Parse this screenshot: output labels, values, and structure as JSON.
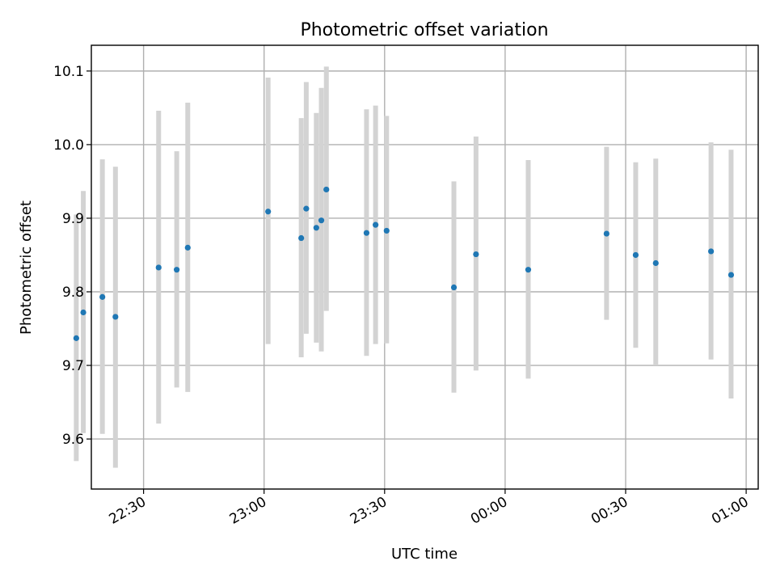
{
  "chart_data": {
    "type": "scatter",
    "title": "Photometric offset variation",
    "xlabel": "UTC time",
    "ylabel": "Photometric offset",
    "xlim": [
      "22:17",
      "01:03"
    ],
    "ylim": [
      9.532,
      10.135
    ],
    "grid": true,
    "x_ticks": [
      "22:30",
      "23:00",
      "23:30",
      "00:00",
      "00:30",
      "01:00"
    ],
    "y_ticks": [
      "9.6",
      "9.7",
      "9.8",
      "9.9",
      "10.0",
      "10.1"
    ],
    "colors": {
      "point": "#1f77b4",
      "errorbar": "#d3d3d3"
    },
    "series": [
      {
        "points": [
          {
            "x": "22:13:15",
            "y": 9.737,
            "ylow": 9.57,
            "yhigh": 9.905
          },
          {
            "x": "22:15:00",
            "y": 9.772,
            "ylow": 9.608,
            "yhigh": 9.937
          },
          {
            "x": "22:19:45",
            "y": 9.793,
            "ylow": 9.607,
            "yhigh": 9.98
          },
          {
            "x": "22:23:00",
            "y": 9.766,
            "ylow": 9.561,
            "yhigh": 9.97
          },
          {
            "x": "22:33:45",
            "y": 9.833,
            "ylow": 9.621,
            "yhigh": 10.046
          },
          {
            "x": "22:38:15",
            "y": 9.83,
            "ylow": 9.67,
            "yhigh": 9.991
          },
          {
            "x": "22:41:00",
            "y": 9.86,
            "ylow": 9.664,
            "yhigh": 10.057
          },
          {
            "x": "23:01:00",
            "y": 9.909,
            "ylow": 9.729,
            "yhigh": 10.091
          },
          {
            "x": "23:09:15",
            "y": 9.873,
            "ylow": 9.711,
            "yhigh": 10.036
          },
          {
            "x": "23:10:30",
            "y": 9.913,
            "ylow": 9.743,
            "yhigh": 10.085
          },
          {
            "x": "23:13:00",
            "y": 9.887,
            "ylow": 9.731,
            "yhigh": 10.043
          },
          {
            "x": "23:14:15",
            "y": 9.897,
            "ylow": 9.719,
            "yhigh": 10.077
          },
          {
            "x": "23:15:30",
            "y": 9.939,
            "ylow": 9.774,
            "yhigh": 10.106
          },
          {
            "x": "23:25:30",
            "y": 9.88,
            "ylow": 9.713,
            "yhigh": 10.048
          },
          {
            "x": "23:27:45",
            "y": 9.891,
            "ylow": 9.729,
            "yhigh": 10.053
          },
          {
            "x": "23:30:30",
            "y": 9.883,
            "ylow": 9.73,
            "yhigh": 10.039
          },
          {
            "x": "23:47:15",
            "y": 9.806,
            "ylow": 9.663,
            "yhigh": 9.95
          },
          {
            "x": "23:52:45",
            "y": 9.851,
            "ylow": 9.693,
            "yhigh": 10.011
          },
          {
            "x": "00:05:45",
            "y": 9.83,
            "ylow": 9.682,
            "yhigh": 9.979
          },
          {
            "x": "00:25:15",
            "y": 9.879,
            "ylow": 9.762,
            "yhigh": 9.997
          },
          {
            "x": "00:32:30",
            "y": 9.85,
            "ylow": 9.724,
            "yhigh": 9.976
          },
          {
            "x": "00:37:30",
            "y": 9.839,
            "ylow": 9.7,
            "yhigh": 9.981
          },
          {
            "x": "00:51:15",
            "y": 9.855,
            "ylow": 9.708,
            "yhigh": 10.003
          },
          {
            "x": "00:56:15",
            "y": 9.823,
            "ylow": 9.655,
            "yhigh": 9.993
          }
        ]
      }
    ]
  }
}
